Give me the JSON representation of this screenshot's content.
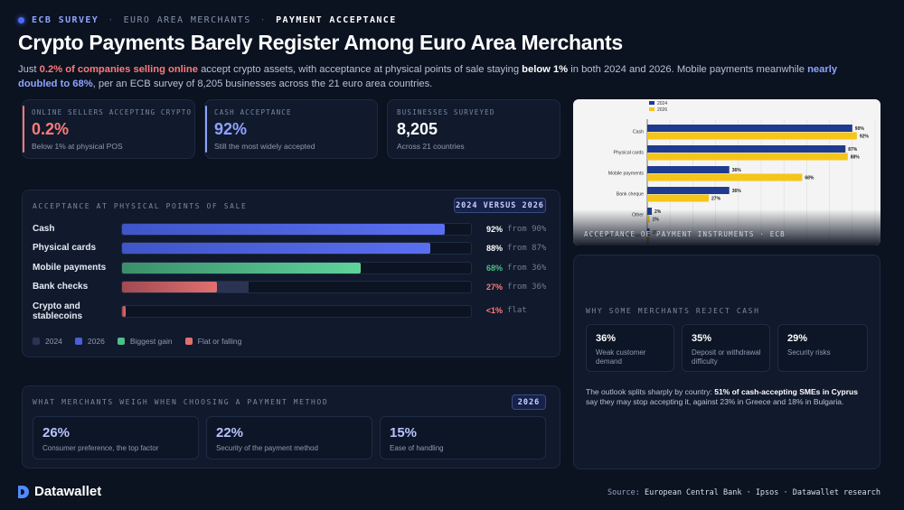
{
  "breadcrumb": {
    "first": "ECB SURVEY",
    "middle": "EURO AREA MERCHANTS",
    "active": "PAYMENT ACCEPTANCE"
  },
  "title": "Crypto Payments Barely Register Among Euro Area Merchants",
  "subtitle": {
    "p1": "Just ",
    "h1": "0.2% of companies selling online",
    "p2": " accept crypto assets, with acceptance at physical points of sale staying ",
    "h2": "below 1%",
    "p3": " in both 2024 and 2026. Mobile payments meanwhile ",
    "h3": "nearly doubled to 68%",
    "p4": ", per an ECB survey of 8,205 businesses across the 21 euro area countries."
  },
  "stats": [
    {
      "label": "ONLINE SELLERS ACCEPTING CRYPTO",
      "value": "0.2%",
      "note": "Below 1% at physical POS",
      "color": "#ff7b7b"
    },
    {
      "label": "CASH ACCEPTANCE",
      "value": "92%",
      "note": "Still the most widely accepted",
      "color": "#8fa3ff"
    },
    {
      "label": "BUSINESSES SURVEYED",
      "value": "8,205",
      "note": "Across 21 countries",
      "color": "#ffffff"
    }
  ],
  "acceptance": {
    "title": "ACCEPTANCE AT PHYSICAL POINTS OF SALE",
    "badge": "2024 VERSUS 2026",
    "legend": {
      "y2024": "2024",
      "y2026": "2026",
      "gain": "Biggest gain",
      "flat": "Flat or falling"
    },
    "colors": {
      "prev": "#2a3452",
      "cur": "#4a5fd8",
      "gain": "#4fbf8a",
      "flat": "#e07070"
    },
    "rows": [
      {
        "label": "Cash",
        "v2024": 90,
        "v2026": 92,
        "value_text": "92%",
        "from_text": "from 90%",
        "kind": "cur"
      },
      {
        "label": "Physical cards",
        "v2024": 87,
        "v2026": 88,
        "value_text": "88%",
        "from_text": "from 87%",
        "kind": "cur"
      },
      {
        "label": "Mobile payments",
        "v2024": 36,
        "v2026": 68,
        "value_text": "68%",
        "from_text": "from 36%",
        "kind": "gain"
      },
      {
        "label": "Bank checks",
        "v2024": 36,
        "v2026": 27,
        "value_text": "27%",
        "from_text": "from 36%",
        "kind": "flat"
      },
      {
        "label": "Crypto and stablecoins",
        "v2024": 1,
        "v2026": 1,
        "value_text": "<1%",
        "from_text": "flat",
        "kind": "flat"
      }
    ]
  },
  "weigh": {
    "title": "WHAT MERCHANTS WEIGH WHEN CHOOSING A PAYMENT METHOD",
    "badge": "2026",
    "items": [
      {
        "value": "26%",
        "note": "Consumer preference, the top factor"
      },
      {
        "value": "22%",
        "note": "Security of the payment method"
      },
      {
        "value": "15%",
        "note": "Ease of handling"
      }
    ]
  },
  "chart_data": {
    "type": "bar",
    "orientation": "horizontal",
    "caption": "ACCEPTANCE OF PAYMENT INSTRUMENTS · ECB",
    "categories": [
      "Cash",
      "Physical cards",
      "Mobile payments",
      "Bank cheque",
      "Other",
      "Crypto-assets or stablecoins"
    ],
    "series": [
      {
        "name": "2024",
        "color": "#1f3b8f",
        "values": [
          90,
          87,
          36,
          36,
          2,
          1
        ]
      },
      {
        "name": "2026",
        "color": "#f5c518",
        "values": [
          92,
          88,
          68,
          27,
          1,
          1
        ]
      }
    ],
    "value_labels": {
      "2024": [
        "90%",
        "87%",
        "36%",
        "36%",
        "2%",
        "1%"
      ],
      "2026": [
        "92%",
        "88%",
        "68%",
        "27%",
        "1%",
        ""
      ]
    },
    "xlim": [
      0,
      100
    ],
    "legend_position": "top-left",
    "grid": true
  },
  "reject": {
    "title": "WHY SOME MERCHANTS REJECT CASH",
    "items": [
      {
        "value": "36%",
        "note": "Weak customer demand"
      },
      {
        "value": "35%",
        "note": "Deposit or withdrawal difficulty"
      },
      {
        "value": "29%",
        "note": "Security risks"
      }
    ],
    "text_a": "The outlook splits sharply by country: ",
    "text_b": "51% of cash-accepting SMEs in Cyprus",
    "text_c": " say they may stop accepting it, against 23% in Greece and 18% in Bulgaria."
  },
  "footer": {
    "brand": "Datawallet",
    "source_label": "Source: ",
    "source": "European Central Bank · Ipsos · Datawallet research"
  }
}
